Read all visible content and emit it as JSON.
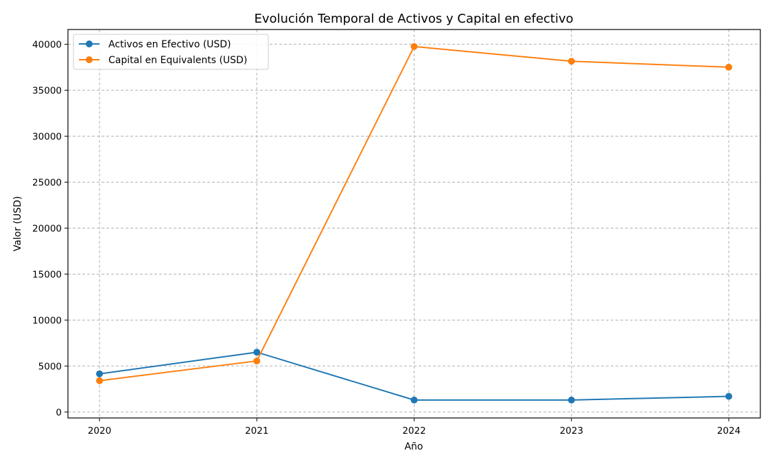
{
  "chart_data": {
    "type": "line",
    "title": "Evolución Temporal de Activos y Capital en efectivo",
    "xlabel": "Año",
    "ylabel": "Valor (USD)",
    "x": [
      "2020",
      "2021",
      "2022",
      "2023",
      "2024"
    ],
    "ylim": [
      -650,
      41600
    ],
    "yticks": [
      0,
      5000,
      10000,
      15000,
      20000,
      25000,
      30000,
      35000,
      40000
    ],
    "grid": true,
    "legend_position": "upper-left",
    "marker": "circle",
    "series": [
      {
        "name": "Activos en Efectivo (USD)",
        "color": "#1f77b4",
        "values": [
          4150,
          6500,
          1300,
          1300,
          1700
        ]
      },
      {
        "name": "Capital en Equivalents (USD)",
        "color": "#ff7f0e",
        "values": [
          3400,
          5550,
          39750,
          38150,
          37500
        ]
      }
    ]
  }
}
